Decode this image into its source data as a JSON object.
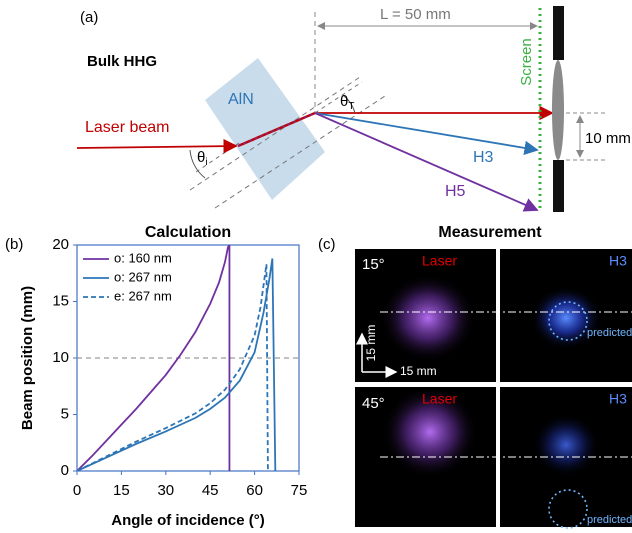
{
  "panel_a": {
    "label": "(a)",
    "title": "Bulk HHG",
    "crystal": "AlN",
    "laser": "Laser beam",
    "theta_i": {
      "base": "θ",
      "sub": "i"
    },
    "theta_t": {
      "base": "θ",
      "sub": "T"
    },
    "distance": "L = 50 mm",
    "screen": "Screen",
    "spot_spacing": "10 mm",
    "h3": "H3",
    "h5": "H5"
  },
  "chart_data": {
    "type": "line",
    "panel_label": "(b)",
    "title": "Calculation",
    "x_label": "Angle of incidence (°)",
    "y_label": "Beam position (mm)",
    "xlim": [
      0,
      75
    ],
    "ylim": [
      0,
      20
    ],
    "xticks": [
      0,
      15,
      30,
      45,
      60,
      75
    ],
    "yticks": [
      0,
      5,
      10,
      15,
      20
    ],
    "reference_line": 10,
    "reference_color": "#808080",
    "legend": "upper left",
    "frame_color": "#4472c4",
    "series": [
      {
        "name": "o: 160 nm",
        "color": "#7030a0",
        "dashed": false,
        "x": [
          0,
          5,
          10,
          15,
          20,
          25,
          30,
          35,
          40,
          45,
          48,
          50,
          51,
          51.5,
          51.5
        ],
        "values": [
          0,
          1.3,
          2.7,
          4.1,
          5.5,
          7,
          8.5,
          10.3,
          12.3,
          14.8,
          16.7,
          18.5,
          19.8,
          20,
          0
        ]
      },
      {
        "name": "o: 267 nm",
        "color": "#2e75b6",
        "dashed": false,
        "x": [
          0,
          10,
          20,
          30,
          40,
          45,
          50,
          55,
          60,
          63,
          65,
          66,
          67
        ],
        "values": [
          0,
          1.2,
          2.4,
          3.5,
          4.7,
          5.5,
          6.5,
          8,
          10.5,
          14,
          17,
          18.8,
          0
        ]
      },
      {
        "name": "e: 267 nm",
        "color": "#2e75b6",
        "dashed": true,
        "x": [
          0,
          10,
          20,
          30,
          40,
          45,
          50,
          55,
          60,
          62,
          64,
          64.5
        ],
        "values": [
          0,
          1.3,
          2.6,
          3.8,
          5.1,
          6,
          7.2,
          9,
          12,
          14.5,
          18.3,
          0
        ]
      }
    ]
  },
  "panel_c": {
    "label": "(c)",
    "title": "Measurement",
    "scale_y": "15 mm",
    "scale_x": "15 mm",
    "rows": [
      {
        "angle": "15°",
        "laser": "Laser",
        "harmonic": "H3",
        "prediction": "predicted"
      },
      {
        "angle": "45°",
        "laser": "Laser",
        "harmonic": "H3",
        "prediction": "predicted"
      }
    ]
  }
}
